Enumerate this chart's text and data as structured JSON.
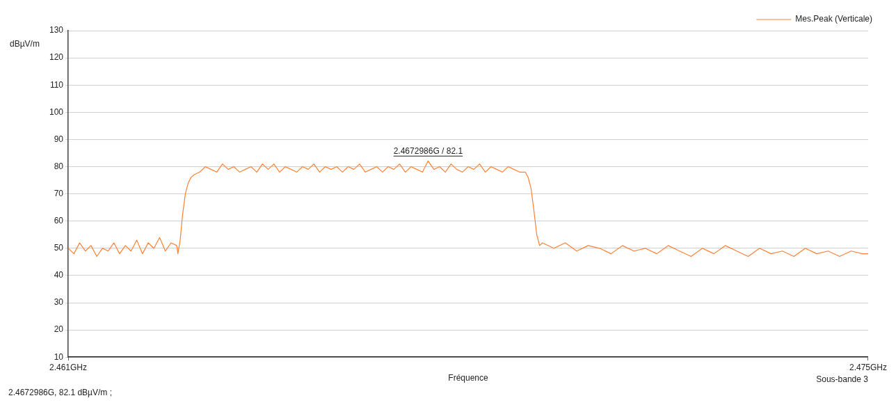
{
  "chart_data": {
    "type": "line",
    "xlabel": "Fréquence",
    "ylabel": "dBµV/m",
    "xlim": [
      2.461,
      2.475
    ],
    "xticks": [
      {
        "value": 2.461,
        "label": "2.461GHz"
      },
      {
        "value": 2.475,
        "label": "2.475GHz"
      }
    ],
    "ylim": [
      10,
      130
    ],
    "yticks": [
      10,
      20,
      30,
      40,
      50,
      60,
      70,
      80,
      90,
      100,
      110,
      120,
      130
    ],
    "grid": "y",
    "legend": "top right",
    "marker": "none",
    "line_style": "solid",
    "annotations": [
      {
        "text": "2.4672986G / 82.1",
        "x": 2.4672986,
        "y": 82.1
      },
      "Sous-bande 3",
      "2.4672986G, 82.1 dBµV/m ;"
    ],
    "series": [
      {
        "name": "Mes.Peak (Verticale)",
        "color": "#ff8033",
        "x": [
          2.461,
          2.4611,
          2.4612,
          2.4613,
          2.4614,
          2.4615,
          2.4616,
          2.4617,
          2.4618,
          2.4619,
          2.462,
          2.4621,
          2.4622,
          2.4623,
          2.4624,
          2.4625,
          2.4626,
          2.4627,
          2.4628,
          2.4629,
          2.46292,
          2.46296,
          2.463,
          2.46305,
          2.4631,
          2.46315,
          2.4632,
          2.4633,
          2.4634,
          2.4635,
          2.4636,
          2.4637,
          2.4638,
          2.4639,
          2.464,
          2.4641,
          2.4642,
          2.4643,
          2.4644,
          2.4645,
          2.4646,
          2.4647,
          2.4648,
          2.4649,
          2.465,
          2.4651,
          2.4652,
          2.4653,
          2.4654,
          2.4655,
          2.4656,
          2.4657,
          2.4658,
          2.4659,
          2.466,
          2.4661,
          2.4662,
          2.4663,
          2.4664,
          2.4665,
          2.4666,
          2.4667,
          2.4668,
          2.4669,
          2.467,
          2.4671,
          2.4672,
          2.4672986,
          2.4674,
          2.4675,
          2.4676,
          2.4677,
          2.4678,
          2.4679,
          2.468,
          2.4681,
          2.4682,
          2.4683,
          2.4684,
          2.4685,
          2.4686,
          2.4687,
          2.4688,
          2.4689,
          2.469,
          2.46905,
          2.4691,
          2.46915,
          2.4692,
          2.46925,
          2.4693,
          2.4695,
          2.4697,
          2.4699,
          2.4701,
          2.4703,
          2.4705,
          2.4707,
          2.4709,
          2.4711,
          2.4713,
          2.4715,
          2.4717,
          2.4719,
          2.4721,
          2.4723,
          2.4725,
          2.4727,
          2.4729,
          2.4731,
          2.4733,
          2.4735,
          2.4737,
          2.4739,
          2.4741,
          2.4743,
          2.4745,
          2.4747,
          2.4749,
          2.475
        ],
        "values": [
          50,
          48,
          52,
          49,
          51,
          47,
          50,
          49,
          52,
          48,
          51,
          49,
          53,
          48,
          52,
          50,
          54,
          49,
          52,
          51,
          48,
          53,
          62,
          70,
          74,
          76,
          77,
          78,
          80,
          79,
          78,
          81,
          79,
          80,
          78,
          79,
          80,
          78,
          81,
          79,
          81,
          78,
          80,
          79,
          78,
          80,
          79,
          81,
          78,
          80,
          79,
          80,
          78,
          80,
          79,
          81,
          78,
          79,
          80,
          78,
          80,
          79,
          81,
          78,
          80,
          79,
          78,
          82.1,
          79,
          80,
          78,
          81,
          79,
          78,
          80,
          79,
          81,
          78,
          80,
          79,
          78,
          80,
          79,
          78,
          78,
          76,
          72,
          64,
          55,
          51,
          52,
          50,
          52,
          49,
          51,
          50,
          48,
          51,
          49,
          50,
          48,
          51,
          49,
          47,
          50,
          48,
          51,
          49,
          47,
          50,
          48,
          49,
          47,
          50,
          48,
          49,
          47,
          49,
          48,
          48
        ]
      }
    ]
  }
}
